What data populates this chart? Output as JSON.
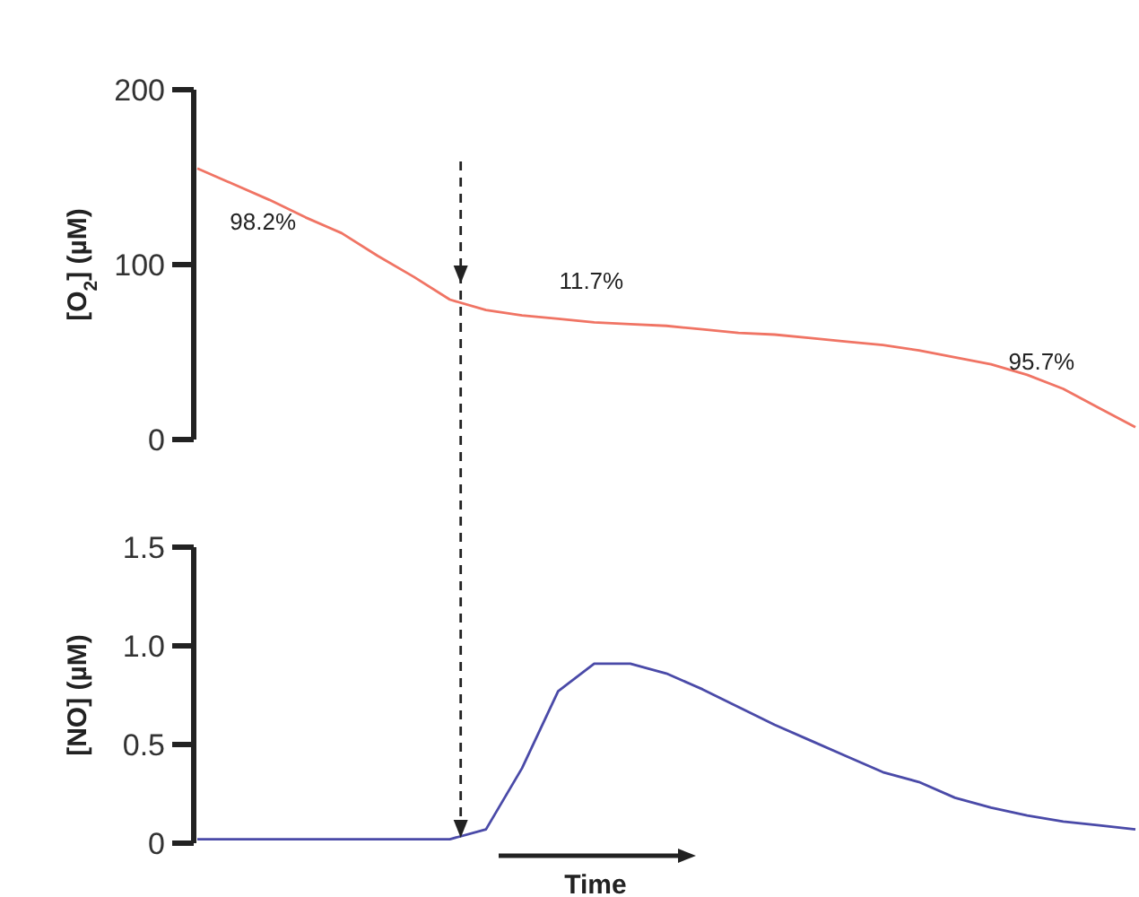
{
  "chart_data": [
    {
      "type": "line",
      "ylabel": "[O$_{2}$] (µM)",
      "categories": [
        null,
        null,
        null,
        null,
        null,
        null,
        null,
        null,
        null,
        null,
        null,
        null,
        null,
        null,
        null,
        null,
        null,
        null,
        null,
        null,
        null,
        null,
        null,
        null,
        null,
        null,
        null
      ],
      "series": [
        {
          "color": "#f07464",
          "values": [
            155,
            146,
            137,
            127,
            118,
            105,
            93,
            80,
            74,
            71,
            69,
            67,
            66,
            65,
            63,
            61,
            60,
            58,
            56,
            54,
            51,
            47,
            43,
            37,
            29,
            18,
            7
          ]
        }
      ],
      "ylim": [
        0,
        200
      ],
      "yticks": [
        0,
        100,
        200
      ],
      "annotations": [
        "98.2%",
        "11.7%",
        "95.7%"
      ],
      "grid": false,
      "tick_labels": "y"
    },
    {
      "type": "line",
      "ylabel": "[NO] (µM)",
      "xlabel": "Time",
      "categories": [
        null,
        null,
        null,
        null,
        null,
        null,
        null,
        null,
        null,
        null,
        null,
        null,
        null,
        null,
        null,
        null,
        null,
        null,
        null,
        null,
        null,
        null,
        null,
        null,
        null,
        null,
        null
      ],
      "series": [
        {
          "color": "#4a4aa8",
          "values": [
            0.02,
            0.02,
            0.02,
            0.02,
            0.02,
            0.02,
            0.02,
            0.02,
            0.07,
            0.38,
            0.77,
            0.91,
            0.91,
            0.86,
            0.78,
            0.69,
            0.6,
            0.52,
            0.44,
            0.36,
            0.31,
            0.23,
            0.18,
            0.14,
            0.11,
            0.09,
            0.07
          ]
        }
      ],
      "ylim": [
        0,
        1.5
      ],
      "yticks": [
        0,
        {
          "value": 0.5,
          "label": "0.5"
        },
        {
          "value": 1,
          "label": "1.0"
        },
        {
          "value": 1.5,
          "label": "1.5"
        }
      ],
      "grid": false,
      "tick_labels": "y"
    }
  ]
}
